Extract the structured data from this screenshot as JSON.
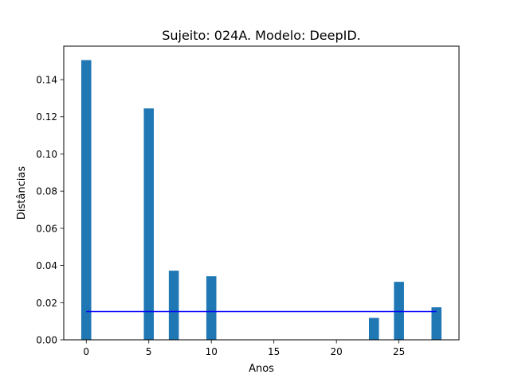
{
  "chart_data": {
    "type": "bar",
    "title": "Sujeito: 024A. Modelo: DeepID.",
    "xlabel": "Anos",
    "ylabel": "Distâncias",
    "xlim": [
      -1.8,
      29.8
    ],
    "ylim": [
      0,
      0.158
    ],
    "x_ticks": [
      0,
      5,
      10,
      15,
      20,
      25
    ],
    "y_ticks": [
      0.0,
      0.02,
      0.04,
      0.06,
      0.08,
      0.1,
      0.12,
      0.14
    ],
    "y_tick_labels": [
      "0.00",
      "0.02",
      "0.04",
      "0.06",
      "0.08",
      "0.10",
      "0.12",
      "0.14"
    ],
    "bar_width": 0.8,
    "bar_color": "#1f77b4",
    "series": [
      {
        "x": [
          0,
          5,
          7,
          10,
          23,
          25,
          28
        ],
        "values": [
          0.1505,
          0.1245,
          0.0372,
          0.0342,
          0.0118,
          0.0312,
          0.0175
        ]
      }
    ],
    "reference_line": {
      "value": 0.0152,
      "x_range": [
        0,
        28
      ],
      "color": "#0000ff"
    },
    "grid": false,
    "legend": "none"
  }
}
